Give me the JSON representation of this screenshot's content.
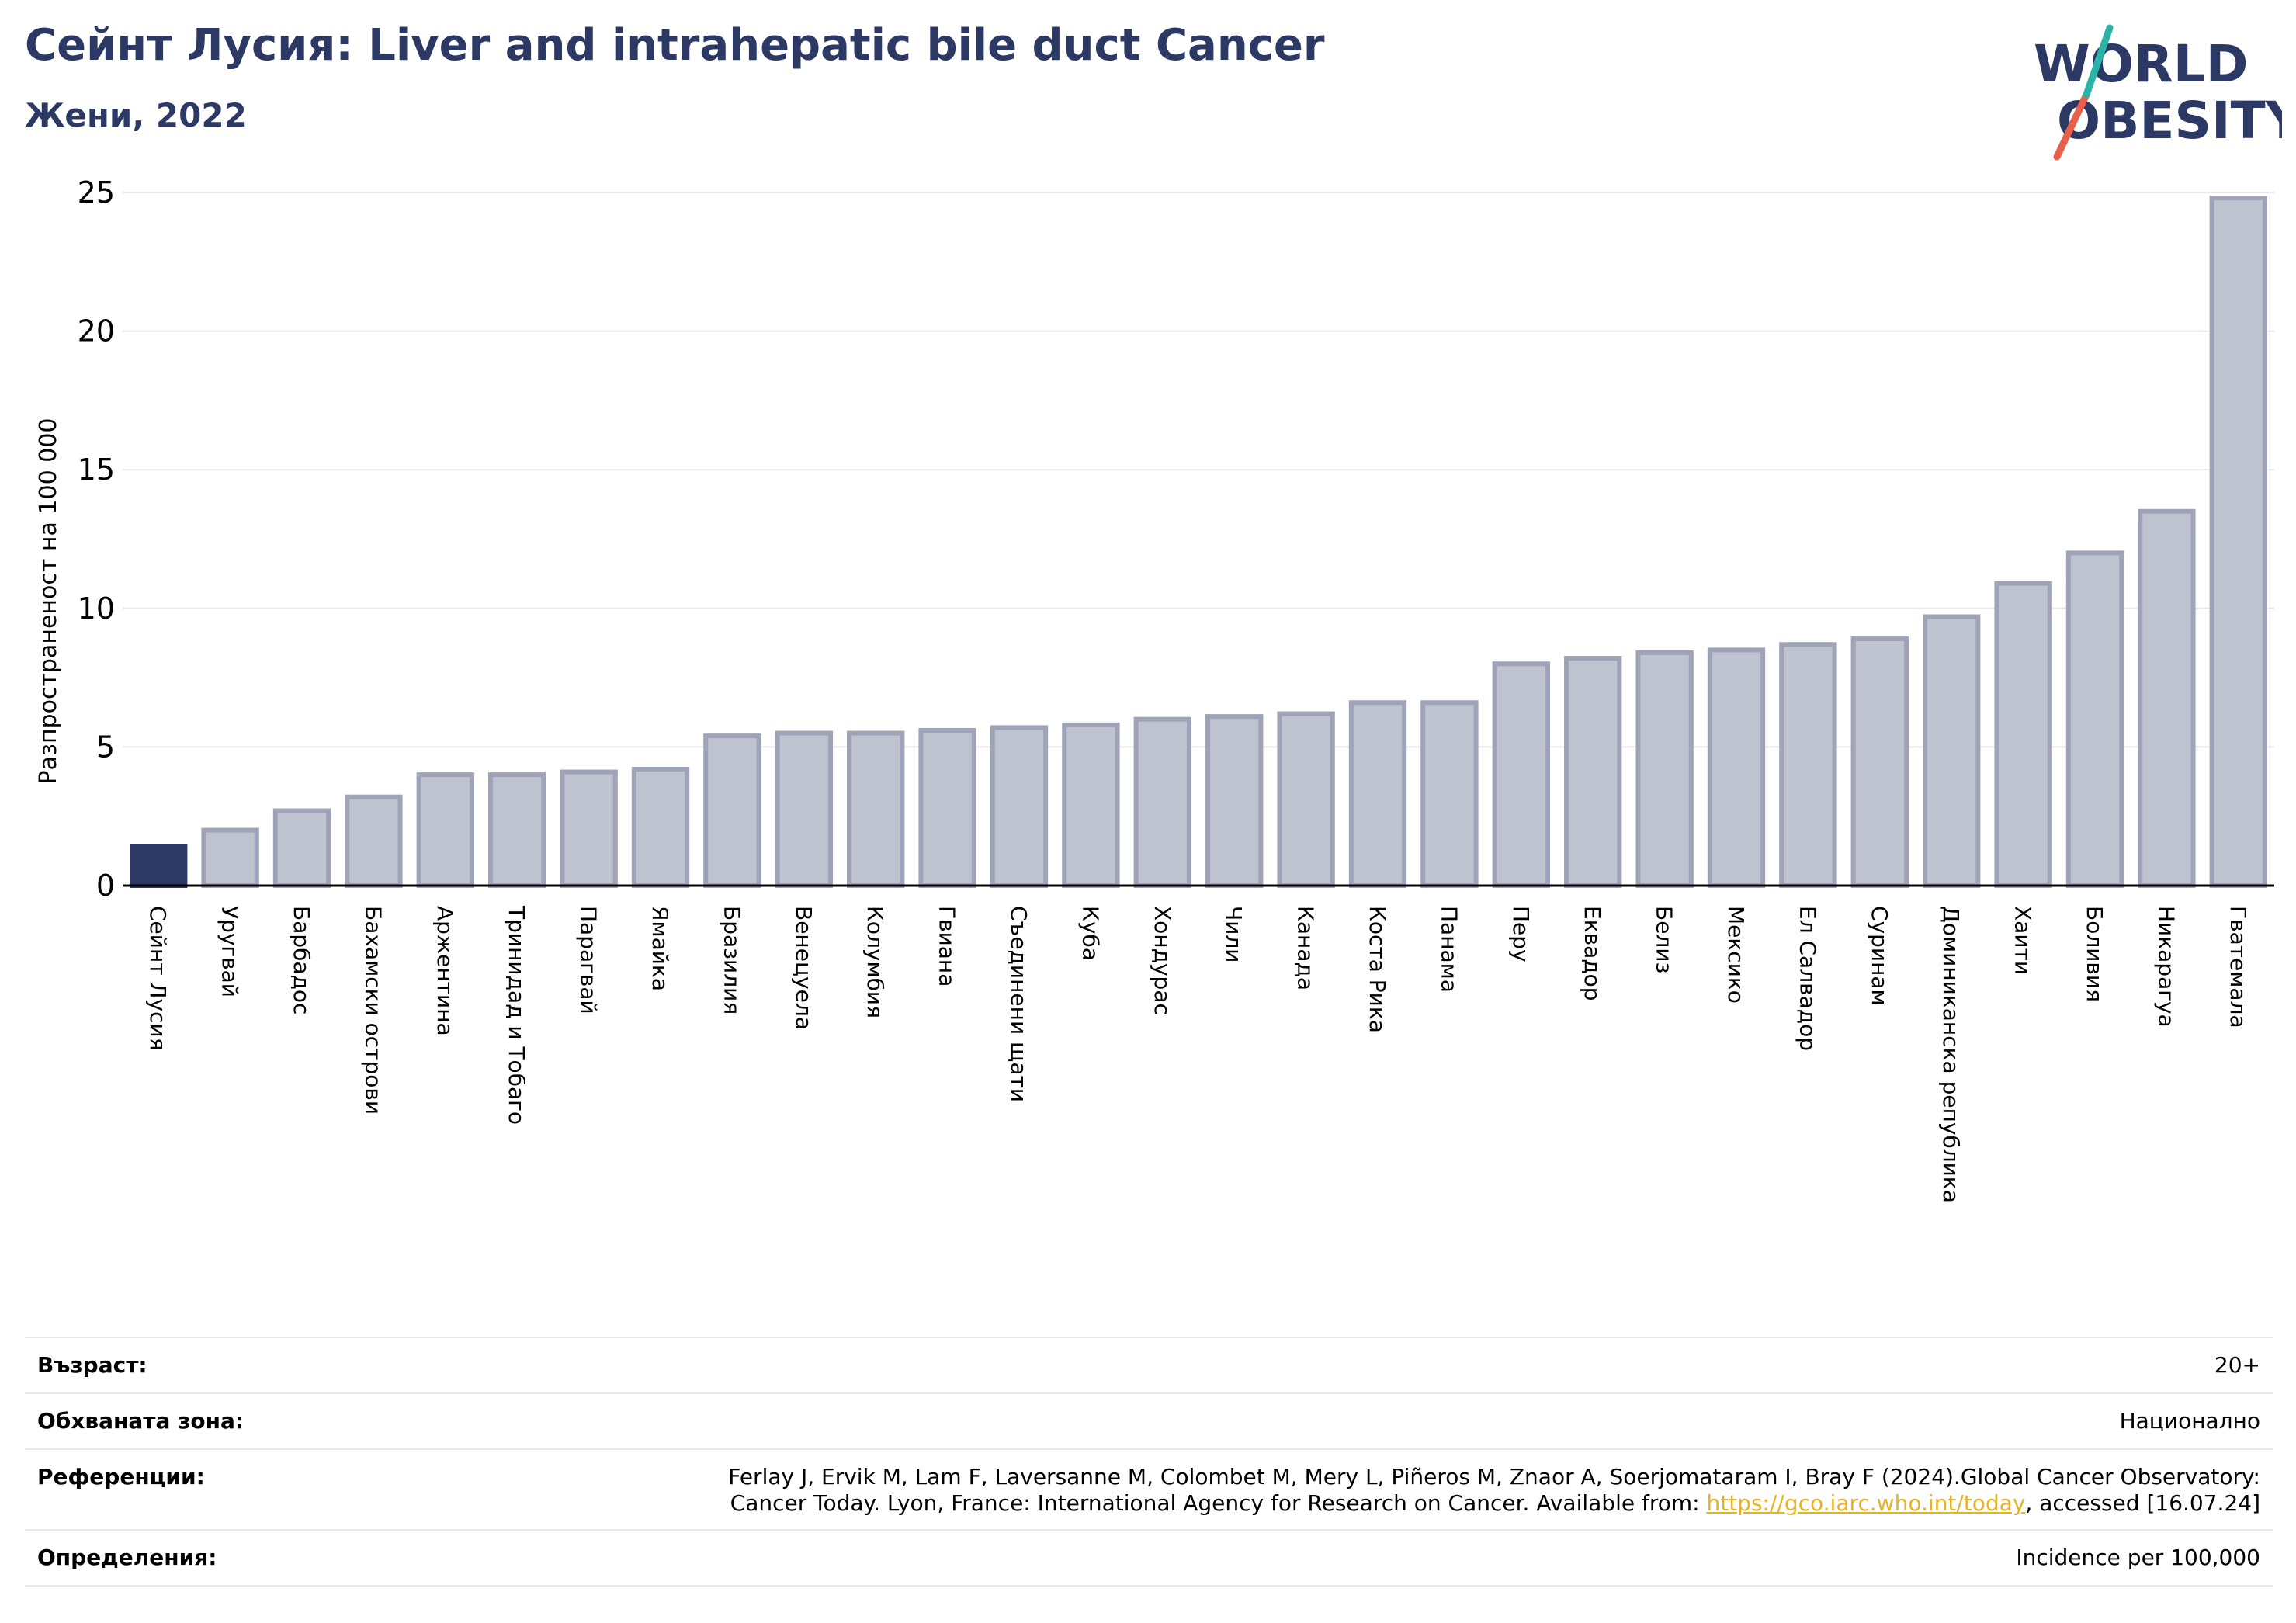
{
  "header": {
    "title": "Сейнт Лусия: Liver and intrahepatic bile duct Cancer",
    "subtitle": "Жени, 2022"
  },
  "logo": {
    "line1": "WORLD",
    "line2": "OBESITY"
  },
  "colors": {
    "highlight": "#2b3964",
    "bar_fill": "#bfc2cf",
    "bar_stroke": "#9ea3b8",
    "title": "#2b3964",
    "link": "#e8b323"
  },
  "chart_data": {
    "type": "bar",
    "title": "Сейнт Лусия: Liver and intrahepatic bile duct Cancer",
    "subtitle": "Жени, 2022",
    "xlabel": "",
    "ylabel": "Разпространеност  на 100 000",
    "ylim": [
      0,
      25
    ],
    "yticks": [
      0,
      5,
      10,
      15,
      20,
      25
    ],
    "grid": true,
    "highlight_category": "Сейнт Лусия",
    "categories": [
      "Сейнт Лусия",
      "Уругвай",
      "Барбадос",
      "Бахамски острови",
      "Аржентина",
      "Тринидад и Тобаго",
      "Парагвай",
      "Ямайка",
      "Бразилия",
      "Венецуела",
      "Колумбия",
      "Гвиана",
      "Съединени щати",
      "Куба",
      "Хондурас",
      "Чили",
      "Канада",
      "Коста Рика",
      "Панама",
      "Перу",
      "Еквадор",
      "Белиз",
      "Мексико",
      "Ел Салвадор",
      "Суринам",
      "Доминиканска република",
      "Хаити",
      "Боливия",
      "Никарагуа",
      "Гватемала"
    ],
    "values": [
      1.4,
      2.0,
      2.7,
      3.2,
      4.0,
      4.0,
      4.1,
      4.2,
      5.4,
      5.5,
      5.5,
      5.6,
      5.7,
      5.8,
      6.0,
      6.1,
      6.2,
      6.6,
      6.6,
      8.0,
      8.2,
      8.4,
      8.5,
      8.7,
      8.9,
      9.7,
      10.9,
      12.0,
      13.5,
      24.8
    ]
  },
  "footer": {
    "age_label": "Възраст:",
    "age_value": "20+",
    "coverage_label": "Обхваната зона:",
    "coverage_value": "Национално",
    "references_label": "Референции:",
    "references_line1": "Ferlay J, Ervik M, Lam F, Laversanne M, Colombet M, Mery L, Piñeros M, Znaor A, Soerjomataram I, Bray F (2024).Global Cancer Observatory:",
    "references_line2_pre": "Cancer Today. Lyon, France: International Agency for Research on Cancer. Available from: ",
    "references_link": "https://gco.iarc.who.int/today",
    "references_line2_post": ", accessed [16.07.24]",
    "definitions_label": "Определения:",
    "definitions_value": "Incidence per 100,000"
  }
}
